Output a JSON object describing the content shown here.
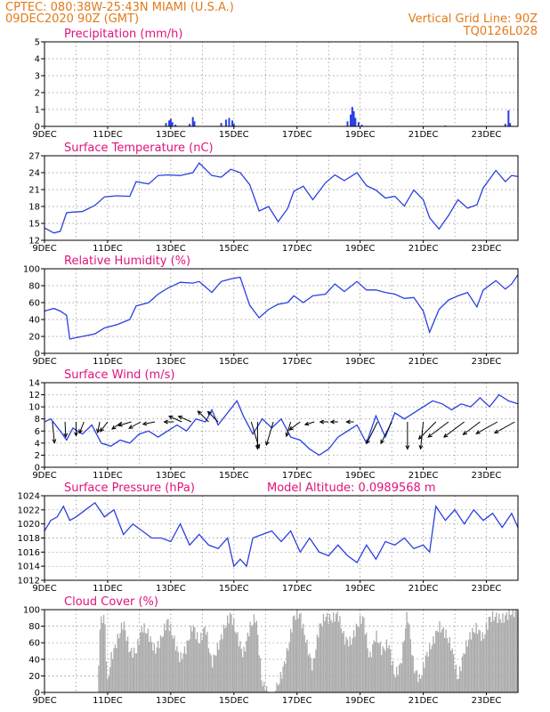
{
  "header": {
    "left_line1": "CPTEC:  080:38W-25:43N  MIAMI (U.S.A.)",
    "left_line2": "09DEC2020 90Z (GMT)",
    "right_line1": "Vertical Grid Line: 90Z",
    "right_line2": "TQ0126L028"
  },
  "x_labels": [
    "9DEC",
    "11DEC",
    "13DEC",
    "15DEC",
    "17DEC",
    "19DEC",
    "21DEC",
    "23DEC"
  ],
  "colors": {
    "series": "#2a3fe0",
    "bars": "#2a3fe0",
    "cloud": "#aaaaaa",
    "title": "#e0127d",
    "header": "#e07b1a"
  },
  "chart_data": [
    {
      "type": "bar",
      "title": "Precipitation (mm/h)",
      "xlabel": "",
      "ylabel": "",
      "ylim": [
        0,
        5
      ],
      "yticks": [
        0,
        1,
        2,
        3,
        4,
        5
      ],
      "x_range_days": [
        9,
        24
      ],
      "series": [
        {
          "values_by_day": [
            [
              12.85,
              0.2
            ],
            [
              12.95,
              0.35
            ],
            [
              13.0,
              0.45
            ],
            [
              13.05,
              0.25
            ],
            [
              13.15,
              0.1
            ],
            [
              13.6,
              0.15
            ],
            [
              13.7,
              0.55
            ],
            [
              13.75,
              0.3
            ],
            [
              14.6,
              0.2
            ],
            [
              14.75,
              0.4
            ],
            [
              14.85,
              0.5
            ],
            [
              14.95,
              0.35
            ],
            [
              15.0,
              0.15
            ],
            [
              18.6,
              0.3
            ],
            [
              18.7,
              0.7
            ],
            [
              18.75,
              1.15
            ],
            [
              18.8,
              0.9
            ],
            [
              18.85,
              0.5
            ],
            [
              18.95,
              0.25
            ],
            [
              19.05,
              0.1
            ],
            [
              21.7,
              0.05
            ],
            [
              23.6,
              0.15
            ],
            [
              23.7,
              0.95
            ],
            [
              23.75,
              0.2
            ]
          ]
        }
      ]
    },
    {
      "type": "line",
      "title": "Surface Temperature (nC)",
      "xlabel": "",
      "ylabel": "",
      "ylim": [
        12,
        27
      ],
      "yticks": [
        12,
        15,
        18,
        21,
        24,
        27
      ],
      "x": [
        9.0,
        9.3,
        9.5,
        9.7,
        9.9,
        10.2,
        10.6,
        10.9,
        11.3,
        11.7,
        11.9,
        12.3,
        12.6,
        12.9,
        13.3,
        13.7,
        13.9,
        14.3,
        14.6,
        14.9,
        15.2,
        15.5,
        15.8,
        16.1,
        16.4,
        16.7,
        16.9,
        17.2,
        17.5,
        17.9,
        18.2,
        18.5,
        18.9,
        19.2,
        19.5,
        19.8,
        20.1,
        20.4,
        20.7,
        21.0,
        21.2,
        21.5,
        21.8,
        22.1,
        22.4,
        22.7,
        22.9,
        23.3,
        23.6,
        23.8,
        24.0
      ],
      "series": [
        {
          "values": [
            14.2,
            13.3,
            13.6,
            16.9,
            17.0,
            17.1,
            18.2,
            19.7,
            19.9,
            19.8,
            22.4,
            22.0,
            23.5,
            23.6,
            23.5,
            24.0,
            25.7,
            23.5,
            23.2,
            24.6,
            24.0,
            21.9,
            17.2,
            18.0,
            15.3,
            17.6,
            20.7,
            21.6,
            19.2,
            22.2,
            23.6,
            22.6,
            24.0,
            21.7,
            20.9,
            19.5,
            19.8,
            18.1,
            20.9,
            19.2,
            16.0,
            14.0,
            16.4,
            19.2,
            17.7,
            18.3,
            21.3,
            24.4,
            22.4,
            23.5,
            23.3
          ]
        }
      ]
    },
    {
      "type": "line",
      "title": "Relative Humidity (%)",
      "xlabel": "",
      "ylabel": "",
      "ylim": [
        0,
        100
      ],
      "yticks": [
        0,
        20,
        40,
        60,
        80,
        100
      ],
      "x": [
        9.0,
        9.3,
        9.5,
        9.7,
        9.8,
        10.2,
        10.6,
        10.9,
        11.3,
        11.7,
        11.9,
        12.3,
        12.6,
        12.9,
        13.3,
        13.7,
        13.9,
        14.3,
        14.6,
        14.9,
        15.2,
        15.5,
        15.8,
        16.1,
        16.4,
        16.7,
        16.9,
        17.2,
        17.5,
        17.9,
        18.2,
        18.5,
        18.9,
        19.2,
        19.5,
        19.8,
        20.1,
        20.4,
        20.7,
        21.0,
        21.2,
        21.5,
        21.8,
        22.1,
        22.4,
        22.7,
        22.9,
        23.3,
        23.6,
        23.8,
        24.0
      ],
      "series": [
        {
          "values": [
            50,
            53,
            50,
            45,
            17,
            20,
            23,
            30,
            34,
            40,
            56,
            60,
            70,
            77,
            84,
            83,
            85,
            72,
            85,
            88,
            90,
            57,
            42,
            52,
            58,
            60,
            68,
            60,
            68,
            70,
            82,
            73,
            85,
            75,
            75,
            72,
            70,
            65,
            66,
            50,
            25,
            52,
            63,
            68,
            72,
            55,
            75,
            86,
            76,
            82,
            93
          ]
        }
      ]
    },
    {
      "type": "line",
      "title": "Surface Wind (m/s)",
      "xlabel": "",
      "ylabel": "",
      "ylim": [
        0,
        14
      ],
      "yticks": [
        0,
        2,
        4,
        6,
        8,
        10,
        12,
        14
      ],
      "x": [
        9.0,
        9.2,
        9.5,
        9.7,
        9.9,
        10.2,
        10.5,
        10.8,
        11.1,
        11.4,
        11.7,
        12.0,
        12.3,
        12.6,
        12.9,
        13.2,
        13.5,
        13.8,
        14.1,
        14.3,
        14.5,
        14.8,
        15.1,
        15.3,
        15.6,
        15.9,
        16.2,
        16.5,
        16.8,
        17.1,
        17.4,
        17.7,
        18.0,
        18.3,
        18.6,
        18.9,
        19.2,
        19.5,
        19.8,
        20.1,
        20.4,
        20.7,
        21.0,
        21.3,
        21.6,
        21.9,
        22.2,
        22.5,
        22.8,
        23.1,
        23.4,
        23.7,
        24.0
      ],
      "series": [
        {
          "values": [
            7.5,
            8.0,
            6.0,
            4.5,
            6.5,
            5.5,
            7.0,
            4.0,
            3.5,
            4.5,
            4.0,
            5.5,
            6.0,
            5.0,
            6.0,
            7.0,
            6.0,
            8.0,
            7.5,
            9.5,
            7.0,
            9.0,
            11.0,
            8.5,
            5.5,
            8.0,
            6.5,
            8.0,
            5.0,
            4.5,
            3.0,
            2.0,
            3.0,
            5.0,
            6.0,
            7.0,
            4.0,
            8.5,
            5.0,
            9.0,
            8.0,
            9.0,
            10.0,
            11.0,
            10.5,
            9.5,
            10.5,
            10.0,
            11.5,
            10.0,
            12.0,
            11.0,
            10.5
          ]
        }
      ],
      "vectors": [
        {
          "day": 9.25,
          "dir": [
            0.1,
            -1.0
          ],
          "len": 3.5
        },
        {
          "day": 9.65,
          "dir": [
            0.05,
            -1.0
          ],
          "len": 2.5
        },
        {
          "day": 10.0,
          "dir": [
            0.0,
            -1.0
          ],
          "len": 2.3
        },
        {
          "day": 10.25,
          "dir": [
            -0.4,
            -1.0
          ],
          "len": 2.0
        },
        {
          "day": 10.75,
          "dir": [
            -0.2,
            -1.0
          ],
          "len": 1.8
        },
        {
          "day": 11.0,
          "dir": [
            -0.6,
            -0.8
          ],
          "len": 2.0
        },
        {
          "day": 11.45,
          "dir": [
            -0.8,
            -0.6
          ],
          "len": 2.0
        },
        {
          "day": 11.75,
          "dir": [
            -1.0,
            -0.3
          ],
          "len": 2.2
        },
        {
          "day": 12.05,
          "dir": [
            -0.9,
            -0.5
          ],
          "len": 2.2
        },
        {
          "day": 12.5,
          "dir": [
            -1.0,
            -0.2
          ],
          "len": 2.0
        },
        {
          "day": 13.1,
          "dir": [
            -1.0,
            0.0
          ],
          "len": 1.6
        },
        {
          "day": 13.35,
          "dir": [
            -0.9,
            0.4
          ],
          "len": 2.3
        },
        {
          "day": 13.65,
          "dir": [
            -0.9,
            0.4
          ],
          "len": 2.3
        },
        {
          "day": 14.2,
          "dir": [
            -0.7,
            0.7
          ],
          "len": 2.5
        },
        {
          "day": 14.5,
          "dir": [
            -0.7,
            0.7
          ],
          "len": 2.4
        },
        {
          "day": 15.55,
          "dir": [
            0.3,
            -1.0
          ],
          "len": 4.5
        },
        {
          "day": 15.75,
          "dir": [
            0.0,
            -1.0
          ],
          "len": 4.5
        },
        {
          "day": 16.25,
          "dir": [
            -0.3,
            -1.0
          ],
          "len": 4.0
        },
        {
          "day": 16.8,
          "dir": [
            -0.3,
            -1.0
          ],
          "len": 2.5
        },
        {
          "day": 17.1,
          "dir": [
            -0.8,
            -0.6
          ],
          "len": 2.2
        },
        {
          "day": 17.55,
          "dir": [
            -1.0,
            -0.3
          ],
          "len": 1.6
        },
        {
          "day": 18.0,
          "dir": [
            -1.0,
            0.0
          ],
          "len": 1.4
        },
        {
          "day": 18.3,
          "dir": [
            -1.0,
            0.0
          ],
          "len": 1.2
        },
        {
          "day": 18.8,
          "dir": [
            -1.0,
            0.0
          ],
          "len": 1.2
        },
        {
          "day": 19.55,
          "dir": [
            -0.5,
            -1.0
          ],
          "len": 4.0
        },
        {
          "day": 20.0,
          "dir": [
            -0.5,
            -1.0
          ],
          "len": 4.0
        },
        {
          "day": 20.5,
          "dir": [
            0.0,
            -1.0
          ],
          "len": 4.5
        },
        {
          "day": 21.0,
          "dir": [
            -0.1,
            -1.0
          ],
          "len": 4.5
        },
        {
          "day": 21.4,
          "dir": [
            -0.7,
            -0.7
          ],
          "len": 4.0
        },
        {
          "day": 21.8,
          "dir": [
            -0.8,
            -0.6
          ],
          "len": 4.2
        },
        {
          "day": 22.3,
          "dir": [
            -0.8,
            -0.6
          ],
          "len": 4.2
        },
        {
          "day": 22.8,
          "dir": [
            -0.8,
            -0.6
          ],
          "len": 3.5
        },
        {
          "day": 23.35,
          "dir": [
            -0.9,
            -0.5
          ],
          "len": 4.0
        },
        {
          "day": 23.9,
          "dir": [
            -0.9,
            -0.5
          ],
          "len": 3.8
        }
      ]
    },
    {
      "type": "line",
      "title": "Surface Pressure (hPa)",
      "annotation": "Model Altitude: 0.0989568 m",
      "xlabel": "",
      "ylabel": "",
      "ylim": [
        1012,
        1024
      ],
      "yticks": [
        1012,
        1014,
        1016,
        1018,
        1020,
        1022,
        1024
      ],
      "x": [
        9.0,
        9.2,
        9.4,
        9.6,
        9.8,
        10.0,
        10.3,
        10.6,
        10.9,
        11.2,
        11.5,
        11.8,
        12.1,
        12.4,
        12.7,
        13.0,
        13.3,
        13.6,
        13.9,
        14.2,
        14.5,
        14.8,
        15.0,
        15.2,
        15.4,
        15.6,
        15.9,
        16.2,
        16.5,
        16.8,
        17.1,
        17.4,
        17.7,
        18.0,
        18.3,
        18.6,
        18.9,
        19.2,
        19.5,
        19.8,
        20.1,
        20.4,
        20.7,
        21.0,
        21.2,
        21.4,
        21.7,
        22.0,
        22.3,
        22.6,
        22.9,
        23.2,
        23.5,
        23.8,
        24.0
      ],
      "series": [
        {
          "values": [
            1019.0,
            1020.5,
            1021.0,
            1022.5,
            1020.5,
            1021.0,
            1022.0,
            1023.0,
            1021.0,
            1022.0,
            1018.5,
            1020.0,
            1019.0,
            1018.0,
            1018.0,
            1017.5,
            1020.0,
            1017.0,
            1018.5,
            1017.0,
            1016.5,
            1018.0,
            1014.0,
            1015.0,
            1014.0,
            1018.0,
            1018.5,
            1019.0,
            1017.5,
            1019.0,
            1016.0,
            1018.0,
            1016.0,
            1015.5,
            1017.0,
            1015.5,
            1014.5,
            1017.0,
            1015.0,
            1017.5,
            1017.0,
            1018.0,
            1016.5,
            1017.0,
            1016.0,
            1022.5,
            1020.5,
            1022.0,
            1020.0,
            1022.0,
            1020.5,
            1021.5,
            1019.5,
            1021.5,
            1019.5
          ]
        }
      ]
    },
    {
      "type": "bar",
      "title": "Cloud Cover (%)",
      "xlabel": "",
      "ylabel": "",
      "ylim": [
        0,
        100
      ],
      "yticks": [
        0,
        20,
        40,
        60,
        80,
        100
      ],
      "envelope_days": [
        9.0,
        10.7,
        10.75,
        10.9,
        11.0,
        11.1,
        11.3,
        11.5,
        11.7,
        11.9,
        12.1,
        12.3,
        12.5,
        12.7,
        12.9,
        13.1,
        13.3,
        13.5,
        13.7,
        13.9,
        14.1,
        14.3,
        14.5,
        14.7,
        14.9,
        15.1,
        15.3,
        15.5,
        15.7,
        15.9,
        16.1,
        16.3,
        16.5,
        16.7,
        16.9,
        17.1,
        17.3,
        17.5,
        17.7,
        17.9,
        18.1,
        18.3,
        18.5,
        18.7,
        18.9,
        19.1,
        19.3,
        19.5,
        19.7,
        19.9,
        20.1,
        20.3,
        20.5,
        20.7,
        20.9,
        21.1,
        21.3,
        21.5,
        21.7,
        21.9,
        22.1,
        22.3,
        22.5,
        22.7,
        22.9,
        23.1,
        23.3,
        23.5,
        23.7,
        23.9,
        24.0
      ],
      "values": [
        0,
        0,
        80,
        95,
        10,
        40,
        62,
        85,
        50,
        48,
        80,
        70,
        50,
        65,
        88,
        65,
        40,
        55,
        82,
        60,
        80,
        35,
        55,
        78,
        95,
        70,
        45,
        78,
        92,
        10,
        0,
        0,
        20,
        50,
        92,
        95,
        60,
        30,
        78,
        92,
        88,
        95,
        65,
        60,
        80,
        92,
        40,
        70,
        50,
        60,
        20,
        35,
        98,
        30,
        15,
        45,
        60,
        80,
        72,
        55,
        15,
        50,
        70,
        78,
        65,
        90,
        92,
        88,
        95,
        98,
        97
      ]
    }
  ]
}
